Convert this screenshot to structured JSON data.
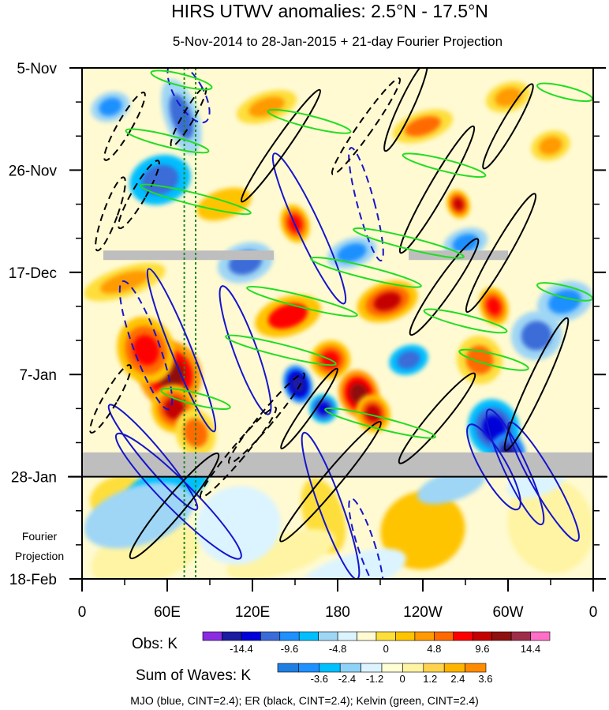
{
  "chart_data": {
    "type": "heatmap",
    "title": "HIRS UTWV anomalies: 2.5°N - 17.5°N",
    "subtitle": "5-Nov-2014 to 28-Jan-2015 + 21-day Fourier Projection",
    "x_ticks": [
      "0",
      "60E",
      "120E",
      "180",
      "120W",
      "60W",
      "0"
    ],
    "x_tick_lon": [
      0,
      60,
      120,
      180,
      240,
      300,
      360
    ],
    "y_ticks": [
      "5-Nov",
      "26-Nov",
      "17-Dec",
      "7-Jan",
      "28-Jan",
      "18-Feb"
    ],
    "y_tick_day": [
      0,
      21,
      42,
      63,
      84,
      105
    ],
    "y_range": [
      0,
      105
    ],
    "x_range": [
      0,
      360
    ],
    "projection_label_line1": "Fourier",
    "projection_label_line2": "Projection",
    "projection_start_day": 84,
    "missing_data_bands": [
      {
        "lon_start": 15,
        "lon_end": 135,
        "day": 38.5
      },
      {
        "lon_start": 230,
        "lon_end": 300,
        "day": 38.5
      },
      {
        "lon_start": 0,
        "lon_end": 360,
        "day_start": 79,
        "day_end": 84
      }
    ],
    "reference_lines_lon": [
      72,
      80
    ],
    "obs_colorbar": {
      "label": "Obs: K",
      "ticks": [
        "-14.4",
        "-9.6",
        "-4.8",
        "0",
        "4.8",
        "9.6",
        "14.4"
      ],
      "colors": [
        "#8b2be2",
        "#1c1ca0",
        "#0000d8",
        "#3a6cd8",
        "#1e90ff",
        "#00bfff",
        "#9fd6f5",
        "#dcf4ff",
        "#fffad2",
        "#fede3a",
        "#ffc400",
        "#ff9a00",
        "#ff6a00",
        "#ff0000",
        "#c40000",
        "#8f1010",
        "#9e2d4a",
        "#ff6ec7"
      ]
    },
    "waves_colorbar": {
      "label": "Sum of Waves: K",
      "ticks": [
        "-3.6",
        "-2.4",
        "-1.2",
        "0",
        "1.2",
        "2.4",
        "3.6"
      ],
      "colors": [
        "#1e7fe0",
        "#1e90ff",
        "#00bfff",
        "#8ed3f7",
        "#dcf4ff",
        "#ffffd6",
        "#fff4a3",
        "#ffd34d",
        "#ffb400",
        "#ff8c00"
      ]
    },
    "footer": "MJO (blue, CINT=2.4); ER (black, CINT=2.4); Kelvin (green, CINT=2.4)",
    "wave_colors": {
      "mjo": "#1515cc",
      "er": "#000000",
      "kelvin": "#22dd22"
    },
    "blobs": [
      {
        "lon": 62,
        "day": 63,
        "rx": 22,
        "ry": 7,
        "v": 13
      },
      {
        "lon": 45,
        "day": 58,
        "rx": 20,
        "ry": 7,
        "v": 9
      },
      {
        "lon": 65,
        "day": 70,
        "rx": 16,
        "ry": 5,
        "v": 10
      },
      {
        "lon": 80,
        "day": 75,
        "rx": 14,
        "ry": 5,
        "v": 6
      },
      {
        "lon": 195,
        "day": 67,
        "rx": 14,
        "ry": 5,
        "v": 13
      },
      {
        "lon": 205,
        "day": 71,
        "rx": 12,
        "ry": 4,
        "v": 10
      },
      {
        "lon": 175,
        "day": 60,
        "rx": 14,
        "ry": 4,
        "v": 9
      },
      {
        "lon": 215,
        "day": 48,
        "rx": 22,
        "ry": 4,
        "v": 10
      },
      {
        "lon": 150,
        "day": 32,
        "rx": 10,
        "ry": 4,
        "v": 9
      },
      {
        "lon": 145,
        "day": 51,
        "rx": 24,
        "ry": 4,
        "v": 8
      },
      {
        "lon": 265,
        "day": 28,
        "rx": 8,
        "ry": 3,
        "v": 10
      },
      {
        "lon": 290,
        "day": 49,
        "rx": 10,
        "ry": 4,
        "v": 9
      },
      {
        "lon": 30,
        "day": 44,
        "rx": 30,
        "ry": 3,
        "v": 5
      },
      {
        "lon": 280,
        "day": 60,
        "rx": 16,
        "ry": 5,
        "v": 6
      },
      {
        "lon": 130,
        "day": 8,
        "rx": 22,
        "ry": 3,
        "v": 5
      },
      {
        "lon": 240,
        "day": 12,
        "rx": 22,
        "ry": 3,
        "v": 6
      },
      {
        "lon": 300,
        "day": 6,
        "rx": 16,
        "ry": 3,
        "v": 5
      },
      {
        "lon": 330,
        "day": 16,
        "rx": 14,
        "ry": 3,
        "v": 5
      },
      {
        "lon": 100,
        "day": 28,
        "rx": 20,
        "ry": 3,
        "v": 4
      },
      {
        "lon": 240,
        "day": 95,
        "rx": 30,
        "ry": 8,
        "v": 3
      },
      {
        "lon": 170,
        "day": 92,
        "rx": 14,
        "ry": 8,
        "v": 2
      },
      {
        "lon": 140,
        "day": 100,
        "rx": 40,
        "ry": 4,
        "v": 1
      },
      {
        "lon": 45,
        "day": 100,
        "rx": 40,
        "ry": 6,
        "v": 1
      },
      {
        "lon": 330,
        "day": 94,
        "rx": 30,
        "ry": 10,
        "v": 1
      },
      {
        "lon": 25,
        "day": 88,
        "rx": 20,
        "ry": 4,
        "v": 2
      },
      {
        "lon": 152,
        "day": 65,
        "rx": 10,
        "ry": 4,
        "v": -13
      },
      {
        "lon": 170,
        "day": 70,
        "rx": 10,
        "ry": 3,
        "v": -9
      },
      {
        "lon": 55,
        "day": 23,
        "rx": 22,
        "ry": 5,
        "v": -8
      },
      {
        "lon": 70,
        "day": 10,
        "rx": 12,
        "ry": 8,
        "v": -6
      },
      {
        "lon": 290,
        "day": 74,
        "rx": 18,
        "ry": 6,
        "v": -9
      },
      {
        "lon": 300,
        "day": 79,
        "rx": 12,
        "ry": 4,
        "v": -12
      },
      {
        "lon": 320,
        "day": 55,
        "rx": 18,
        "ry": 5,
        "v": -6
      },
      {
        "lon": 230,
        "day": 60,
        "rx": 14,
        "ry": 3,
        "v": -7
      },
      {
        "lon": 115,
        "day": 40,
        "rx": 20,
        "ry": 4,
        "v": -6
      },
      {
        "lon": 190,
        "day": 38,
        "rx": 18,
        "ry": 3,
        "v": -5
      },
      {
        "lon": 270,
        "day": 36,
        "rx": 16,
        "ry": 3,
        "v": -5
      },
      {
        "lon": 20,
        "day": 8,
        "rx": 14,
        "ry": 3,
        "v": -5
      },
      {
        "lon": 340,
        "day": 48,
        "rx": 20,
        "ry": 4,
        "v": -5
      },
      {
        "lon": 60,
        "day": 86,
        "rx": 30,
        "ry": 4,
        "v": -3.6
      },
      {
        "lon": 40,
        "day": 92,
        "rx": 40,
        "ry": 6,
        "v": -2.4
      },
      {
        "lon": 110,
        "day": 94,
        "rx": 30,
        "ry": 8,
        "v": -1.2
      },
      {
        "lon": 190,
        "day": 104,
        "rx": 40,
        "ry": 4,
        "v": -1.2
      },
      {
        "lon": 260,
        "day": 86,
        "rx": 25,
        "ry": 3,
        "v": -2.4
      },
      {
        "lon": 320,
        "day": 85,
        "rx": 22,
        "ry": 3,
        "v": -1.2
      }
    ],
    "mjo_contours": [
      {
        "lon": 70,
        "day": 58,
        "rx": 7,
        "ry": 18,
        "rot": -22,
        "dash": false
      },
      {
        "lon": 50,
        "day": 80,
        "rx": 7,
        "ry": 14,
        "rot": -40,
        "dash": false
      },
      {
        "lon": 68,
        "day": 88,
        "rx": 10,
        "ry": 18,
        "rot": -45,
        "dash": false
      },
      {
        "lon": 45,
        "day": 57,
        "rx": 9,
        "ry": 14,
        "rot": -20,
        "dash": true
      },
      {
        "lon": 160,
        "day": 33,
        "rx": 8,
        "ry": 17,
        "rot": -25,
        "dash": false
      },
      {
        "lon": 175,
        "day": 90,
        "rx": 8,
        "ry": 16,
        "rot": -20,
        "dash": false
      },
      {
        "lon": 200,
        "day": 98,
        "rx": 6,
        "ry": 10,
        "rot": -18,
        "dash": true
      },
      {
        "lon": 200,
        "day": 28,
        "rx": 6,
        "ry": 12,
        "rot": -15,
        "dash": true
      },
      {
        "lon": 290,
        "day": 82,
        "rx": 9,
        "ry": 10,
        "rot": -30,
        "dash": false
      },
      {
        "lon": 305,
        "day": 82,
        "rx": 8,
        "ry": 13,
        "rot": -25,
        "dash": false
      },
      {
        "lon": 325,
        "day": 85,
        "rx": 8,
        "ry": 14,
        "rot": -30,
        "dash": false
      },
      {
        "lon": 75,
        "day": 5,
        "rx": 10,
        "ry": 7,
        "rot": -30,
        "dash": true
      },
      {
        "lon": 115,
        "day": 58,
        "rx": 8,
        "ry": 14,
        "rot": -20,
        "dash": false
      }
    ],
    "er_contours": [
      {
        "lon": 228,
        "day": 8,
        "rx": 5,
        "ry": 10,
        "rot": 25,
        "dash": false
      },
      {
        "lon": 250,
        "day": 25,
        "rx": 6,
        "ry": 15,
        "rot": 30,
        "dash": false
      },
      {
        "lon": 255,
        "day": 45,
        "rx": 6,
        "ry": 12,
        "rot": 35,
        "dash": false
      },
      {
        "lon": 295,
        "day": 38,
        "rx": 6,
        "ry": 14,
        "rot": 30,
        "dash": false
      },
      {
        "lon": 320,
        "day": 65,
        "rx": 6,
        "ry": 15,
        "rot": 25,
        "dash": false
      },
      {
        "lon": 175,
        "day": 85,
        "rx": 6,
        "ry": 16,
        "rot": 40,
        "dash": false
      },
      {
        "lon": 250,
        "day": 72,
        "rx": 6,
        "ry": 12,
        "rot": 40,
        "dash": false
      },
      {
        "lon": 65,
        "day": 90,
        "rx": 7,
        "ry": 14,
        "rot": 40,
        "dash": false
      },
      {
        "lon": 140,
        "day": 16,
        "rx": 5,
        "ry": 14,
        "rot": 35,
        "dash": false
      },
      {
        "lon": 200,
        "day": 12,
        "rx": 5,
        "ry": 12,
        "rot": 35,
        "dash": true
      },
      {
        "lon": 300,
        "day": 12,
        "rx": 5,
        "ry": 10,
        "rot": 30,
        "dash": false
      },
      {
        "lon": 40,
        "day": 26,
        "rx": 5,
        "ry": 8,
        "rot": 30,
        "dash": true
      },
      {
        "lon": 20,
        "day": 30,
        "rx": 5,
        "ry": 8,
        "rot": 20,
        "dash": true
      },
      {
        "lon": 20,
        "day": 68,
        "rx": 5,
        "ry": 8,
        "rot": 30,
        "dash": true
      },
      {
        "lon": 110,
        "day": 79,
        "rx": 5,
        "ry": 12,
        "rot": 40,
        "dash": true
      },
      {
        "lon": 160,
        "day": 70,
        "rx": 4,
        "ry": 10,
        "rot": 35,
        "dash": false
      },
      {
        "lon": 130,
        "day": 72,
        "rx": 5,
        "ry": 12,
        "rot": 40,
        "dash": true
      },
      {
        "lon": 75,
        "day": 10,
        "rx": 4,
        "ry": 7,
        "rot": 30,
        "dash": true
      },
      {
        "lon": 30,
        "day": 12,
        "rx": 5,
        "ry": 8,
        "rot": 30,
        "dash": true
      }
    ],
    "kelvin_contours": [
      {
        "lon": 70,
        "day": 2.5,
        "rx": 22,
        "ry": 1.2,
        "rot": 14,
        "dash": false
      },
      {
        "lon": 160,
        "day": 11,
        "rx": 30,
        "ry": 1.2,
        "rot": 14,
        "dash": false
      },
      {
        "lon": 255,
        "day": 20,
        "rx": 30,
        "ry": 1.2,
        "rot": 14,
        "dash": false
      },
      {
        "lon": 80,
        "day": 27,
        "rx": 40,
        "ry": 1.2,
        "rot": 14,
        "dash": false
      },
      {
        "lon": 230,
        "day": 36,
        "rx": 40,
        "ry": 1.2,
        "rot": 14,
        "dash": false
      },
      {
        "lon": 155,
        "day": 48,
        "rx": 40,
        "ry": 1.2,
        "rot": 14,
        "dash": false
      },
      {
        "lon": 140,
        "day": 58,
        "rx": 40,
        "ry": 1.2,
        "rot": 14,
        "dash": false
      },
      {
        "lon": 210,
        "day": 73,
        "rx": 40,
        "ry": 1.2,
        "rot": 14,
        "dash": false
      },
      {
        "lon": 270,
        "day": 52,
        "rx": 30,
        "ry": 1.2,
        "rot": 14,
        "dash": false
      },
      {
        "lon": 340,
        "day": 46,
        "rx": 20,
        "ry": 1.2,
        "rot": 14,
        "dash": false
      },
      {
        "lon": 340,
        "day": 5,
        "rx": 20,
        "ry": 1.2,
        "rot": 14,
        "dash": false
      },
      {
        "lon": 200,
        "day": 42,
        "rx": 40,
        "ry": 1.2,
        "rot": 14,
        "dash": false
      },
      {
        "lon": 60,
        "day": 15,
        "rx": 30,
        "ry": 1.2,
        "rot": 14,
        "dash": false
      },
      {
        "lon": 80,
        "day": 68,
        "rx": 25,
        "ry": 1.2,
        "rot": 14,
        "dash": false
      },
      {
        "lon": 290,
        "day": 60,
        "rx": 25,
        "ry": 1.2,
        "rot": 14,
        "dash": false
      }
    ]
  }
}
